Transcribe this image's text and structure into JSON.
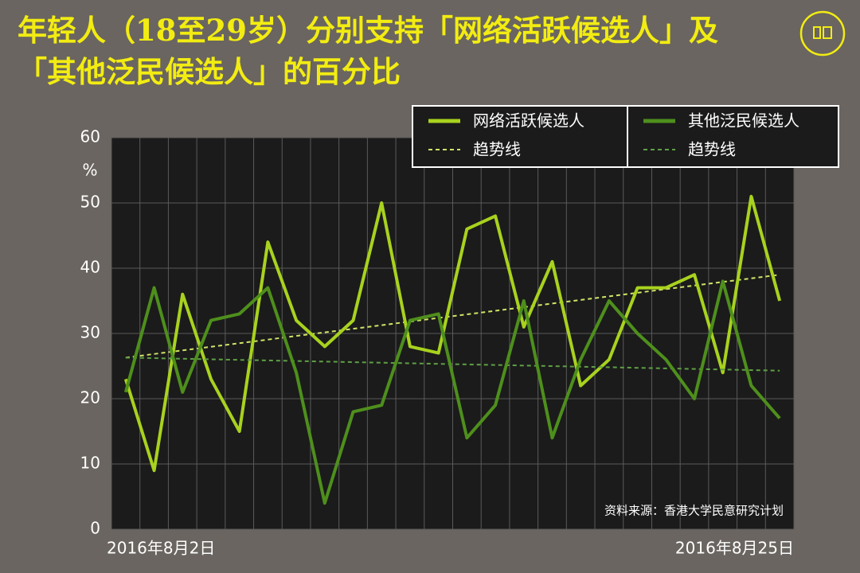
{
  "chart_data": {
    "type": "line",
    "title": "年轻人（18至29岁）分别支持「网络活跃候选人」及「其他泛民候选人」的百分比",
    "y_unit": "%",
    "source": "资料来源：香港大学民意研究计划",
    "categories": [
      "2016年8月2日",
      null,
      null,
      null,
      null,
      null,
      null,
      null,
      null,
      null,
      null,
      null,
      null,
      null,
      null,
      null,
      null,
      null,
      null,
      null,
      null,
      null,
      null,
      "2016年8月25日"
    ],
    "series": [
      {
        "name": "网络活跃候选人",
        "color": "#a8d21e",
        "trend_name": "趋势线",
        "trend_color": "#cfe466",
        "trend": [
          26.3,
          39
        ],
        "values": [
          23,
          9,
          36,
          23,
          15,
          44,
          32,
          28,
          32,
          50,
          28,
          27,
          46,
          48,
          31,
          41,
          22,
          26,
          37,
          37,
          39,
          24,
          51,
          35
        ]
      },
      {
        "name": "其他泛民候选人",
        "color": "#4e8f1c",
        "trend_name": "趋势线",
        "trend_color": "#5f9f45",
        "trend": [
          26.3,
          24.3
        ],
        "values": [
          21,
          37,
          21,
          32,
          33,
          37,
          24,
          4,
          18,
          19,
          32,
          33,
          14,
          19,
          35,
          14,
          26,
          35,
          30,
          26,
          20,
          38,
          22,
          17
        ]
      }
    ],
    "ylim": [
      0,
      60
    ],
    "yticks": [
      0,
      10,
      20,
      30,
      40,
      50,
      60
    ],
    "grid": true
  }
}
